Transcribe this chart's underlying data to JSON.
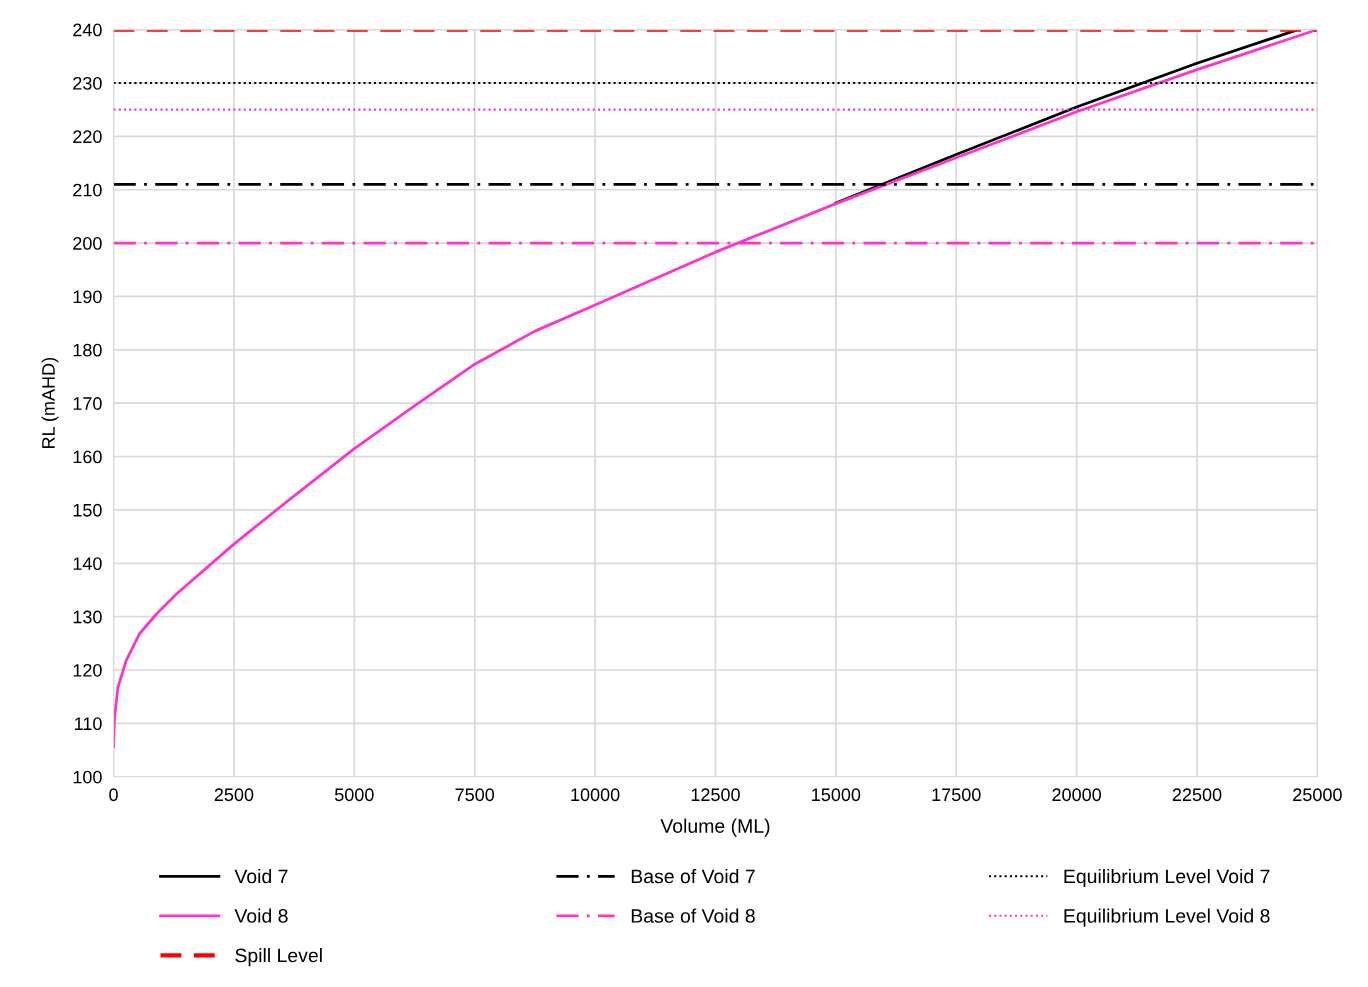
{
  "chart_data": {
    "type": "line",
    "xlabel": "Volume (ML)",
    "ylabel": "RL (mAHD)",
    "xlim": [
      0,
      25000
    ],
    "xticks": [
      0,
      2500,
      5000,
      7500,
      10000,
      12500,
      15000,
      17500,
      20000,
      22500,
      25000
    ],
    "ylim": [
      100,
      240
    ],
    "yticks": [
      100,
      110,
      120,
      130,
      140,
      150,
      160,
      170,
      180,
      190,
      200,
      210,
      220,
      230,
      240
    ],
    "grid": true,
    "legend": "bottom",
    "line_style": "solid",
    "marker": "none",
    "series": [
      {
        "name": "Void 7",
        "color": "#000000",
        "x": [
          15000,
          17500,
          20000,
          22500,
          24600
        ],
        "values": [
          207.5,
          216.6,
          225.5,
          233.7,
          240
        ]
      },
      {
        "name": "Void 8",
        "color": "#ff33cc",
        "x": [
          0,
          20,
          90,
          260,
          540,
          890,
          1300,
          2500,
          3620,
          5000,
          6250,
          7500,
          8750,
          10000,
          12500,
          15000,
          17500,
          20000,
          22500,
          25000
        ],
        "values": [
          105.6,
          111,
          116.7,
          121.7,
          126.8,
          130.5,
          134.2,
          143.6,
          151.7,
          161.5,
          169.5,
          177.3,
          183.5,
          188.4,
          198.3,
          207.4,
          216.0,
          224.6,
          232.5,
          240
        ]
      }
    ],
    "ref_lines": [
      {
        "axis": "y",
        "value": 240,
        "label": "Spill Level",
        "color": "#ff0000",
        "line_style": "dashed"
      },
      {
        "axis": "y",
        "value": 211,
        "label": "Base of Void 7",
        "color": "#000000",
        "line_style": "dashdot"
      },
      {
        "axis": "y",
        "value": 200,
        "label": "Base of Void 8",
        "color": "#ff33cc",
        "line_style": "dashdot"
      },
      {
        "axis": "y",
        "value": 230,
        "label": "Equilibrium Level Void 7",
        "color": "#000000",
        "line_style": "dotted"
      },
      {
        "axis": "y",
        "value": 225,
        "label": "Equilibrium Level Void 8",
        "color": "#ff33cc",
        "line_style": "dotted"
      }
    ]
  }
}
